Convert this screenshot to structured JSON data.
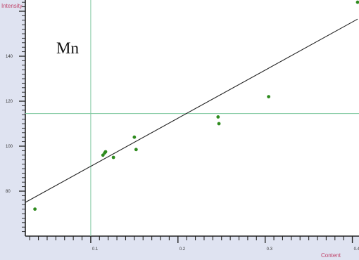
{
  "chart_data": {
    "type": "scatter",
    "title": "Mn",
    "xlabel": "Content",
    "ylabel": "Intensity",
    "xlim": [
      0.025,
      0.406
    ],
    "ylim": [
      60,
      165
    ],
    "x_ticks": [
      {
        "value": 0.1,
        "label": "0.1"
      },
      {
        "value": 0.2,
        "label": "0.2"
      },
      {
        "value": 0.3,
        "label": "0.3"
      },
      {
        "value": 0.4,
        "label": "0.4"
      }
    ],
    "y_ticks": [
      {
        "value": 80,
        "label": "80"
      },
      {
        "value": 100,
        "label": "100"
      },
      {
        "value": 120,
        "label": "120"
      },
      {
        "value": 140,
        "label": "140"
      }
    ],
    "points": [
      {
        "x": 0.036,
        "y": 72
      },
      {
        "x": 0.114,
        "y": 96
      },
      {
        "x": 0.116,
        "y": 97
      },
      {
        "x": 0.117,
        "y": 97.5
      },
      {
        "x": 0.126,
        "y": 95
      },
      {
        "x": 0.15,
        "y": 104
      },
      {
        "x": 0.152,
        "y": 98.5
      },
      {
        "x": 0.246,
        "y": 113
      },
      {
        "x": 0.247,
        "y": 110
      },
      {
        "x": 0.304,
        "y": 122
      },
      {
        "x": 0.406,
        "y": 164
      }
    ],
    "fit_line": {
      "x": [
        0.025,
        0.406
      ],
      "y": [
        75,
        156.5
      ]
    },
    "crosshair": {
      "x": 0.1,
      "y": 114.5
    },
    "grid": false,
    "legend": "none",
    "colors": {
      "points": "#2e8b1e",
      "fit_line": "#222222",
      "crosshair": "#7fc8a0",
      "axis": "#222222",
      "axis_name": "#c0446a",
      "ruler": "#dfe3f1"
    }
  }
}
